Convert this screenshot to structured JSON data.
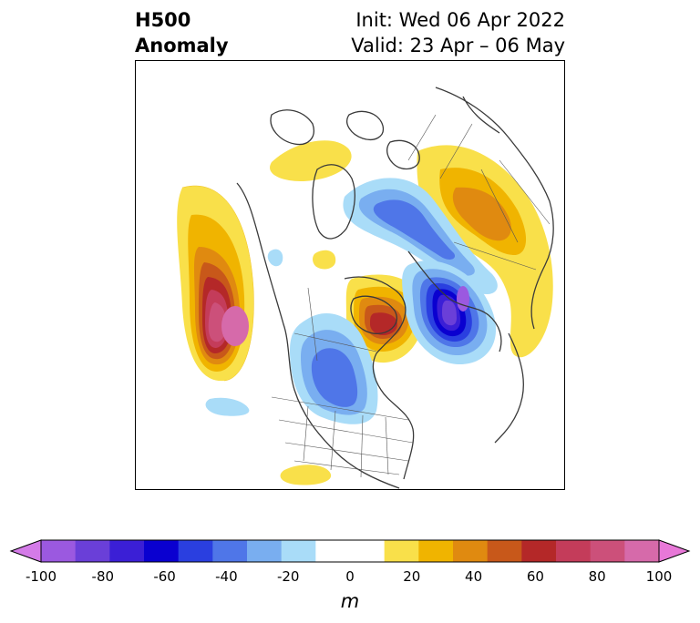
{
  "header": {
    "title_line1": "H500",
    "title_line2": "Anomaly",
    "init": "Init: Wed 06 Apr 2022",
    "valid": "Valid: 23 Apr – 06 May"
  },
  "colorbar": {
    "unit": "m",
    "ticks": [
      "-100",
      "-80",
      "-60",
      "-40",
      "-20",
      "0",
      "20",
      "40",
      "60",
      "80",
      "100"
    ],
    "colors": [
      "#d47be8",
      "#9b59e0",
      "#6a3fd8",
      "#3b1fd6",
      "#0a00d0",
      "#2a3fe0",
      "#4f76e8",
      "#79aef0",
      "#a9dcf8",
      "#ffffff",
      "#ffffff",
      "#f9e04a",
      "#f0b400",
      "#e08a10",
      "#c8581a",
      "#b42828",
      "#c43c5a",
      "#cc507a",
      "#d66aaa",
      "#e878d8"
    ]
  },
  "map": {
    "anomalies": [
      {
        "name": "north-pacific-ridge",
        "sign": "positive",
        "peak": "+90"
      },
      {
        "name": "hudson-bay-high",
        "sign": "positive",
        "peak": "+70"
      },
      {
        "name": "siberian-ridge",
        "sign": "positive",
        "peak": "+40"
      },
      {
        "name": "ural-trough",
        "sign": "negative",
        "peak": "-100"
      },
      {
        "name": "arctic-trough",
        "sign": "negative",
        "peak": "-40"
      },
      {
        "name": "central-canada-trough",
        "sign": "negative",
        "peak": "-40"
      }
    ]
  }
}
